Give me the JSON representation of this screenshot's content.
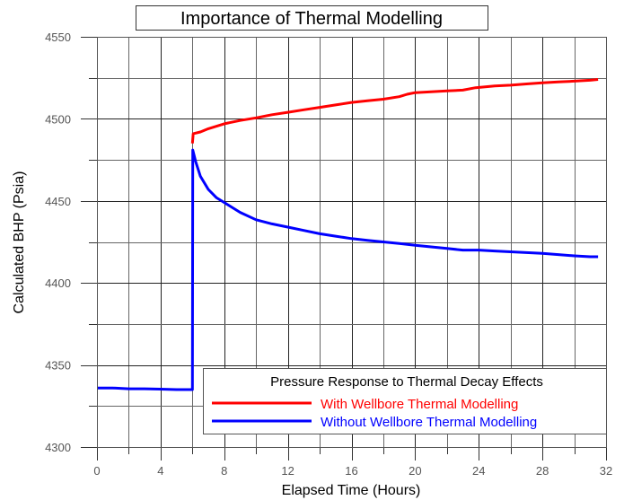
{
  "chart_data": {
    "type": "line",
    "title": "Importance of Thermal Modelling",
    "xlabel": "Elapsed Time (Hours)",
    "ylabel": "Calculated BHP (Psia)",
    "xlim": [
      0,
      32
    ],
    "ylim": [
      4300,
      4550
    ],
    "x_ticks": [
      0,
      4,
      8,
      12,
      16,
      20,
      24,
      28,
      32
    ],
    "x_minor_step": 2,
    "y_ticks": [
      4300,
      4350,
      4400,
      4450,
      4500,
      4550
    ],
    "y_minor_step": 25,
    "grid": true,
    "legend": {
      "title": "Pressure Response to Thermal Decay Effects",
      "placement": "bottom-right"
    },
    "series": [
      {
        "name": "With Wellbore Thermal Modelling",
        "color": "#ff0000",
        "points": [
          [
            6.0,
            4485
          ],
          [
            6.05,
            4491
          ],
          [
            6.5,
            4492
          ],
          [
            7,
            4494
          ],
          [
            8,
            4497
          ],
          [
            9,
            4499
          ],
          [
            10,
            4500.6
          ],
          [
            11,
            4502.5
          ],
          [
            12,
            4504
          ],
          [
            13,
            4505.5
          ],
          [
            14,
            4507
          ],
          [
            15,
            4508.5
          ],
          [
            16,
            4510
          ],
          [
            17,
            4511
          ],
          [
            18,
            4512
          ],
          [
            19,
            4513.5
          ],
          [
            19.5,
            4515
          ],
          [
            20,
            4516
          ],
          [
            21,
            4516.5
          ],
          [
            22,
            4517
          ],
          [
            23,
            4517.5
          ],
          [
            23.8,
            4519
          ],
          [
            25,
            4520
          ],
          [
            26,
            4520.5
          ],
          [
            27,
            4521.3
          ],
          [
            28,
            4522
          ],
          [
            29,
            4522.5
          ],
          [
            30,
            4523
          ],
          [
            31,
            4523.5
          ],
          [
            31.5,
            4524
          ]
        ]
      },
      {
        "name": "Without Wellbore Thermal Modelling",
        "color": "#0000ff",
        "points": [
          [
            0,
            4336
          ],
          [
            1,
            4336
          ],
          [
            2,
            4335.5
          ],
          [
            3,
            4335.5
          ],
          [
            4,
            4335.3
          ],
          [
            5,
            4335
          ],
          [
            5.9,
            4335
          ],
          [
            6.0,
            4335
          ],
          [
            6.02,
            4481
          ],
          [
            6.2,
            4474
          ],
          [
            6.5,
            4465
          ],
          [
            7,
            4457
          ],
          [
            7.5,
            4452
          ],
          [
            8,
            4449
          ],
          [
            9,
            4443
          ],
          [
            10,
            4438.5
          ],
          [
            11,
            4436
          ],
          [
            12,
            4434
          ],
          [
            13,
            4432
          ],
          [
            14,
            4430
          ],
          [
            15,
            4428.5
          ],
          [
            16,
            4427
          ],
          [
            17,
            4426
          ],
          [
            18,
            4425
          ],
          [
            19,
            4424
          ],
          [
            20,
            4423
          ],
          [
            21,
            4422
          ],
          [
            22,
            4421
          ],
          [
            23,
            4420
          ],
          [
            24,
            4420
          ],
          [
            25,
            4419.5
          ],
          [
            26,
            4419
          ],
          [
            27,
            4418.5
          ],
          [
            28,
            4418
          ],
          [
            29,
            4417.3
          ],
          [
            30,
            4416.5
          ],
          [
            31,
            4416
          ],
          [
            31.5,
            4416
          ]
        ]
      }
    ]
  }
}
